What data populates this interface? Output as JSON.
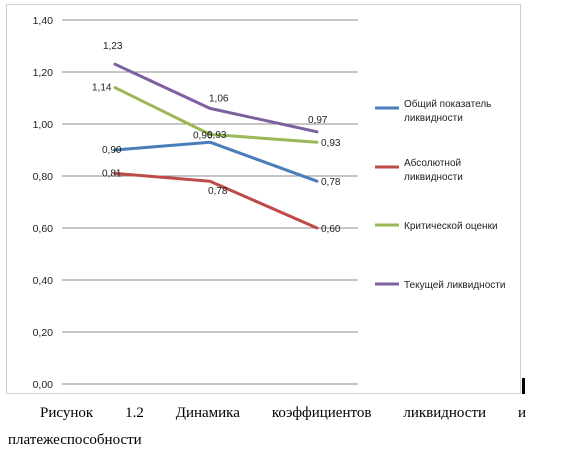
{
  "chart_data": {
    "type": "line",
    "categories": [
      "",
      "",
      ""
    ],
    "ylim": [
      0,
      1.4
    ],
    "yticks": [
      "0,00",
      "0,20",
      "0,40",
      "0,60",
      "0,80",
      "1,00",
      "1,20",
      "1,40"
    ],
    "grid": true,
    "legend_position": "right",
    "series": [
      {
        "name": "Общий показатель ликвидности",
        "name_lines": [
          "Общий показатель",
          "ликвидности"
        ],
        "color": "#4a7ebb",
        "values": [
          0.9,
          0.93,
          0.78
        ],
        "labels": [
          "0,90",
          "0,93",
          "0,78"
        ]
      },
      {
        "name": "Абсолютной ликвидности",
        "name_lines": [
          "Абсолютной",
          "ликвидности"
        ],
        "color": "#be4b48",
        "values": [
          0.81,
          0.78,
          0.6
        ],
        "labels": [
          "0,81",
          "0,78",
          "0,60"
        ]
      },
      {
        "name": "Критической оценки",
        "name_lines": [
          "Критической оценки"
        ],
        "color": "#98b954",
        "values": [
          1.14,
          0.96,
          0.93
        ],
        "labels": [
          "1,14",
          "0,96",
          "0,93"
        ]
      },
      {
        "name": "Текущей ликвидности",
        "name_lines": [
          "Текущей ликвидности"
        ],
        "color": "#7d60a0",
        "values": [
          1.23,
          1.06,
          0.97
        ],
        "labels": [
          "1,23",
          "1,06",
          "0,97"
        ]
      }
    ]
  },
  "caption": {
    "words_line1": [
      "Рисунок",
      "1.2",
      "Динамика",
      "коэффициентов",
      "ликвидности",
      "и"
    ],
    "line2": "платежеспособности"
  }
}
